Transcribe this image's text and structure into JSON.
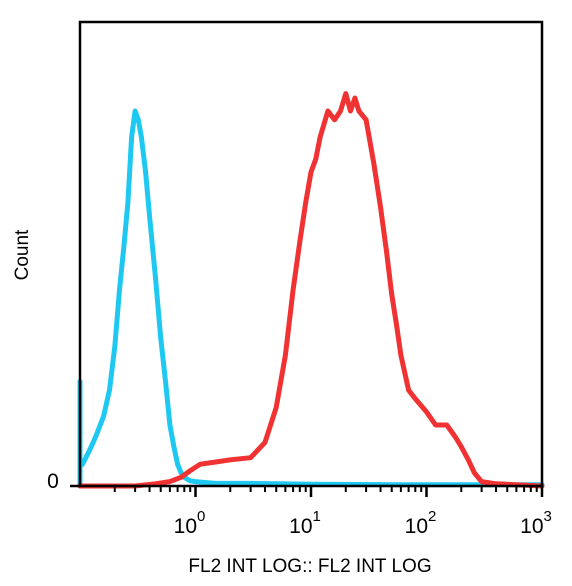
{
  "chart_data": {
    "type": "line",
    "title": "",
    "xlabel": "FL2 INT LOG:: FL2 INT LOG",
    "ylabel": "Count",
    "x_scale": "log",
    "xlim": [
      0.1,
      1000
    ],
    "ylim": [
      0,
      100
    ],
    "grid": false,
    "legend": "none",
    "y_ticks": [
      {
        "value": 0,
        "label": "0"
      }
    ],
    "x_major_ticks": [
      {
        "value": 1,
        "base": "10",
        "exp": "0"
      },
      {
        "value": 10,
        "base": "10",
        "exp": "1"
      },
      {
        "value": 100,
        "base": "10",
        "exp": "2"
      },
      {
        "value": 1000,
        "base": "10",
        "exp": "3"
      }
    ],
    "series": [
      {
        "color": "#1ec8f0",
        "x": [
          0.1,
          0.1,
          0.1,
          0.105,
          0.11,
          0.12,
          0.13,
          0.14,
          0.16,
          0.18,
          0.2,
          0.22,
          0.24,
          0.26,
          0.28,
          0.3,
          0.32,
          0.34,
          0.37,
          0.4,
          0.45,
          0.5,
          0.55,
          0.6,
          0.65,
          0.7,
          0.75,
          0.8,
          0.9,
          1.0,
          1.2,
          1.5,
          2,
          3,
          5,
          10,
          50,
          200,
          1000
        ],
        "y": [
          0,
          24,
          4.5,
          5,
          6,
          8,
          10,
          12,
          16,
          22,
          32,
          45,
          55,
          65,
          80,
          86,
          84,
          80,
          72,
          62,
          48,
          34,
          24,
          14,
          9,
          5,
          3,
          2,
          1.2,
          1.0,
          0.8,
          0.6,
          0.6,
          0.6,
          0.5,
          0.4,
          0.3,
          0.3,
          0.3
        ]
      },
      {
        "color": "#f03232",
        "x": [
          0.1,
          0.3,
          0.45,
          0.6,
          0.75,
          0.9,
          1.1,
          1.5,
          2,
          3,
          4,
          5,
          6,
          7,
          8,
          9,
          10,
          11,
          12,
          14,
          16,
          18,
          20,
          22,
          24,
          26,
          30,
          35,
          40,
          45,
          50,
          55,
          60,
          70,
          80,
          100,
          120,
          150,
          180,
          200,
          230,
          260,
          300,
          400,
          1000
        ],
        "y": [
          0,
          0,
          0.5,
          1,
          2,
          3.5,
          5,
          5.5,
          6,
          6.5,
          10,
          18,
          30,
          45,
          56,
          65,
          72,
          75,
          80,
          86,
          84,
          86,
          90,
          86,
          89,
          86,
          84,
          74,
          64,
          54,
          44,
          37,
          30,
          22,
          20,
          17,
          14,
          14,
          11,
          9,
          6,
          3,
          1,
          0.5,
          0
        ]
      }
    ]
  }
}
